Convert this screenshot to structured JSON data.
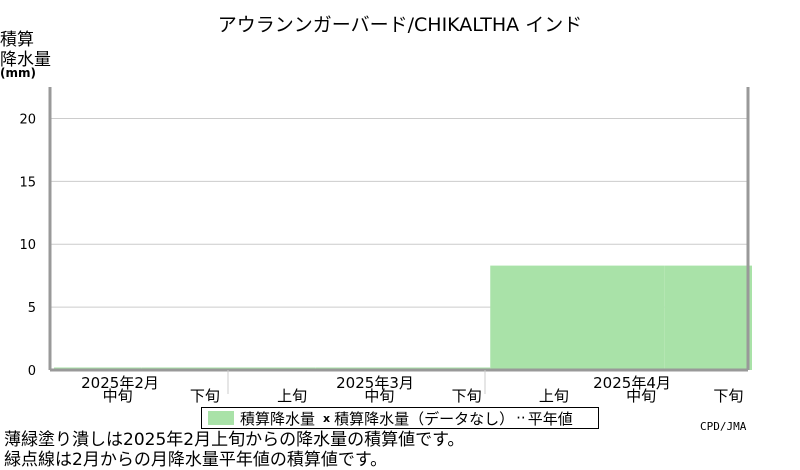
{
  "chart_data": {
    "type": "bar",
    "title": "アウランンガーバード/CHIKALTHA インド",
    "ylabel_lines": [
      "積算",
      "降水量"
    ],
    "yunit": "(mm)",
    "ylim": [
      0,
      22.5
    ],
    "yticks": [
      0,
      5,
      10,
      15,
      20
    ],
    "grid": true,
    "xtick_labels": [
      "中旬",
      "下旬",
      "上旬",
      "中旬",
      "下旬",
      "上旬",
      "中旬",
      "下旬"
    ],
    "months": [
      "2025年2月",
      "2025年3月",
      "2025年4月"
    ],
    "series": [
      {
        "name": "積算降水量",
        "color": "#a9e2a8",
        "values": [
          0.2,
          0.2,
          0.2,
          0.2,
          0.2,
          8.3,
          8.3,
          8.3
        ]
      }
    ],
    "legend": {
      "entries": [
        "積算降水量",
        "積算降水量（データなし）",
        "平年値"
      ],
      "marker": "x",
      "dotted_glyph": "··",
      "placement": "bottom"
    }
  },
  "credit": "CPD/JMA",
  "notes": [
    "薄緑塗り潰しは2025年2月上旬からの降水量の積算値です。",
    "緑点線は2月からの月降水量平年値の積算値です。"
  ]
}
